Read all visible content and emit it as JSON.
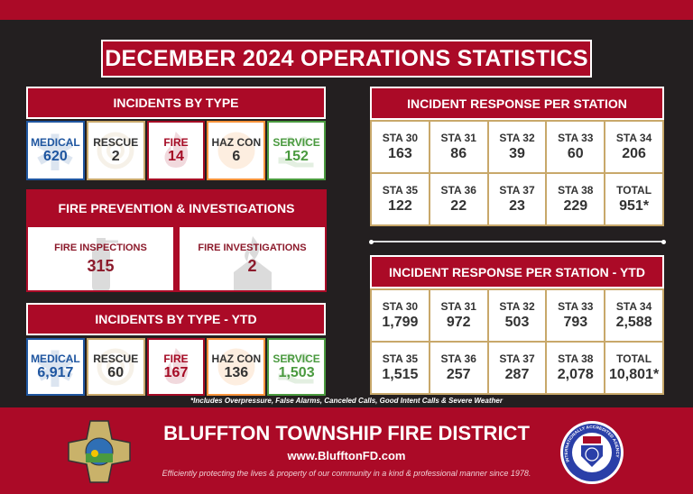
{
  "title": "DECEMBER 2024 OPERATIONS STATISTICS",
  "colors": {
    "red": "#ab0a27",
    "background": "#231f20",
    "medical": "#1f56a0",
    "rescue": "#c8a86a",
    "fire": "#a50b25",
    "hazcon": "#f7923a",
    "service": "#4a9a3f"
  },
  "incidents": {
    "header": "INCIDENTS BY TYPE",
    "items": [
      {
        "label": "MEDICAL",
        "value": "620",
        "icon": "star-of-life-icon"
      },
      {
        "label": "RESCUE",
        "value": "2",
        "icon": "rescue-rope-icon"
      },
      {
        "label": "FIRE",
        "value": "14",
        "icon": "flame-icon"
      },
      {
        "label": "HAZ CON",
        "value": "6",
        "icon": "radiation-icon"
      },
      {
        "label": "SERVICE",
        "value": "152",
        "icon": "helping-hand-icon"
      }
    ]
  },
  "prevention": {
    "header": "FIRE PREVENTION & INVESTIGATIONS",
    "items": [
      {
        "label": "FIRE INSPECTIONS",
        "value": "315",
        "icon": "fire-extinguisher-icon"
      },
      {
        "label": "FIRE INVESTIGATIONS",
        "value": "2",
        "icon": "house-fire-icon"
      }
    ]
  },
  "incidents_ytd": {
    "header": "INCIDENTS BY TYPE - YTD",
    "items": [
      {
        "label": "MEDICAL",
        "value": "6,917"
      },
      {
        "label": "RESCUE",
        "value": "60"
      },
      {
        "label": "FIRE",
        "value": "167"
      },
      {
        "label": "HAZ CON",
        "value": "136"
      },
      {
        "label": "SERVICE",
        "value": "1,503"
      }
    ]
  },
  "stations": {
    "header": "INCIDENT RESPONSE PER STATION",
    "cells": [
      {
        "label": "STA 30",
        "value": "163"
      },
      {
        "label": "STA 31",
        "value": "86"
      },
      {
        "label": "STA 32",
        "value": "39"
      },
      {
        "label": "STA 33",
        "value": "60"
      },
      {
        "label": "STA 34",
        "value": "206"
      },
      {
        "label": "STA 35",
        "value": "122"
      },
      {
        "label": "STA 36",
        "value": "22"
      },
      {
        "label": "STA 37",
        "value": "23"
      },
      {
        "label": "STA 38",
        "value": "229"
      },
      {
        "label": "TOTAL",
        "value": "951*"
      }
    ]
  },
  "stations_ytd": {
    "header": "INCIDENT RESPONSE PER STATION - YTD",
    "cells": [
      {
        "label": "STA 30",
        "value": "1,799"
      },
      {
        "label": "STA 31",
        "value": "972"
      },
      {
        "label": "STA 32",
        "value": "503"
      },
      {
        "label": "STA 33",
        "value": "793"
      },
      {
        "label": "STA 34",
        "value": "2,588"
      },
      {
        "label": "STA 35",
        "value": "1,515"
      },
      {
        "label": "STA 36",
        "value": "257"
      },
      {
        "label": "STA 37",
        "value": "287"
      },
      {
        "label": "STA 38",
        "value": "2,078"
      },
      {
        "label": "TOTAL",
        "value": "10,801*"
      }
    ]
  },
  "footnote": "*Includes Overpressure, False Alarms, Canceled Calls, Good Intent Calls & Severe Weather",
  "footer": {
    "name": "BLUFFTON TOWNSHIP FIRE DISTRICT",
    "website": "www.BlufftonFD.com",
    "tagline": "Efficiently protecting the lives & property of our community in a kind & professional manner since 1978.",
    "badge_left": {
      "top": "BTFD",
      "left": "FIRE",
      "right": "RESCUE",
      "bottom": "EST. 1978"
    },
    "badge_right": {
      "ring": "INTERNATIONALLY ACCREDITED AGENCY",
      "center": "CFAI",
      "years": "2020 - 2025"
    }
  }
}
